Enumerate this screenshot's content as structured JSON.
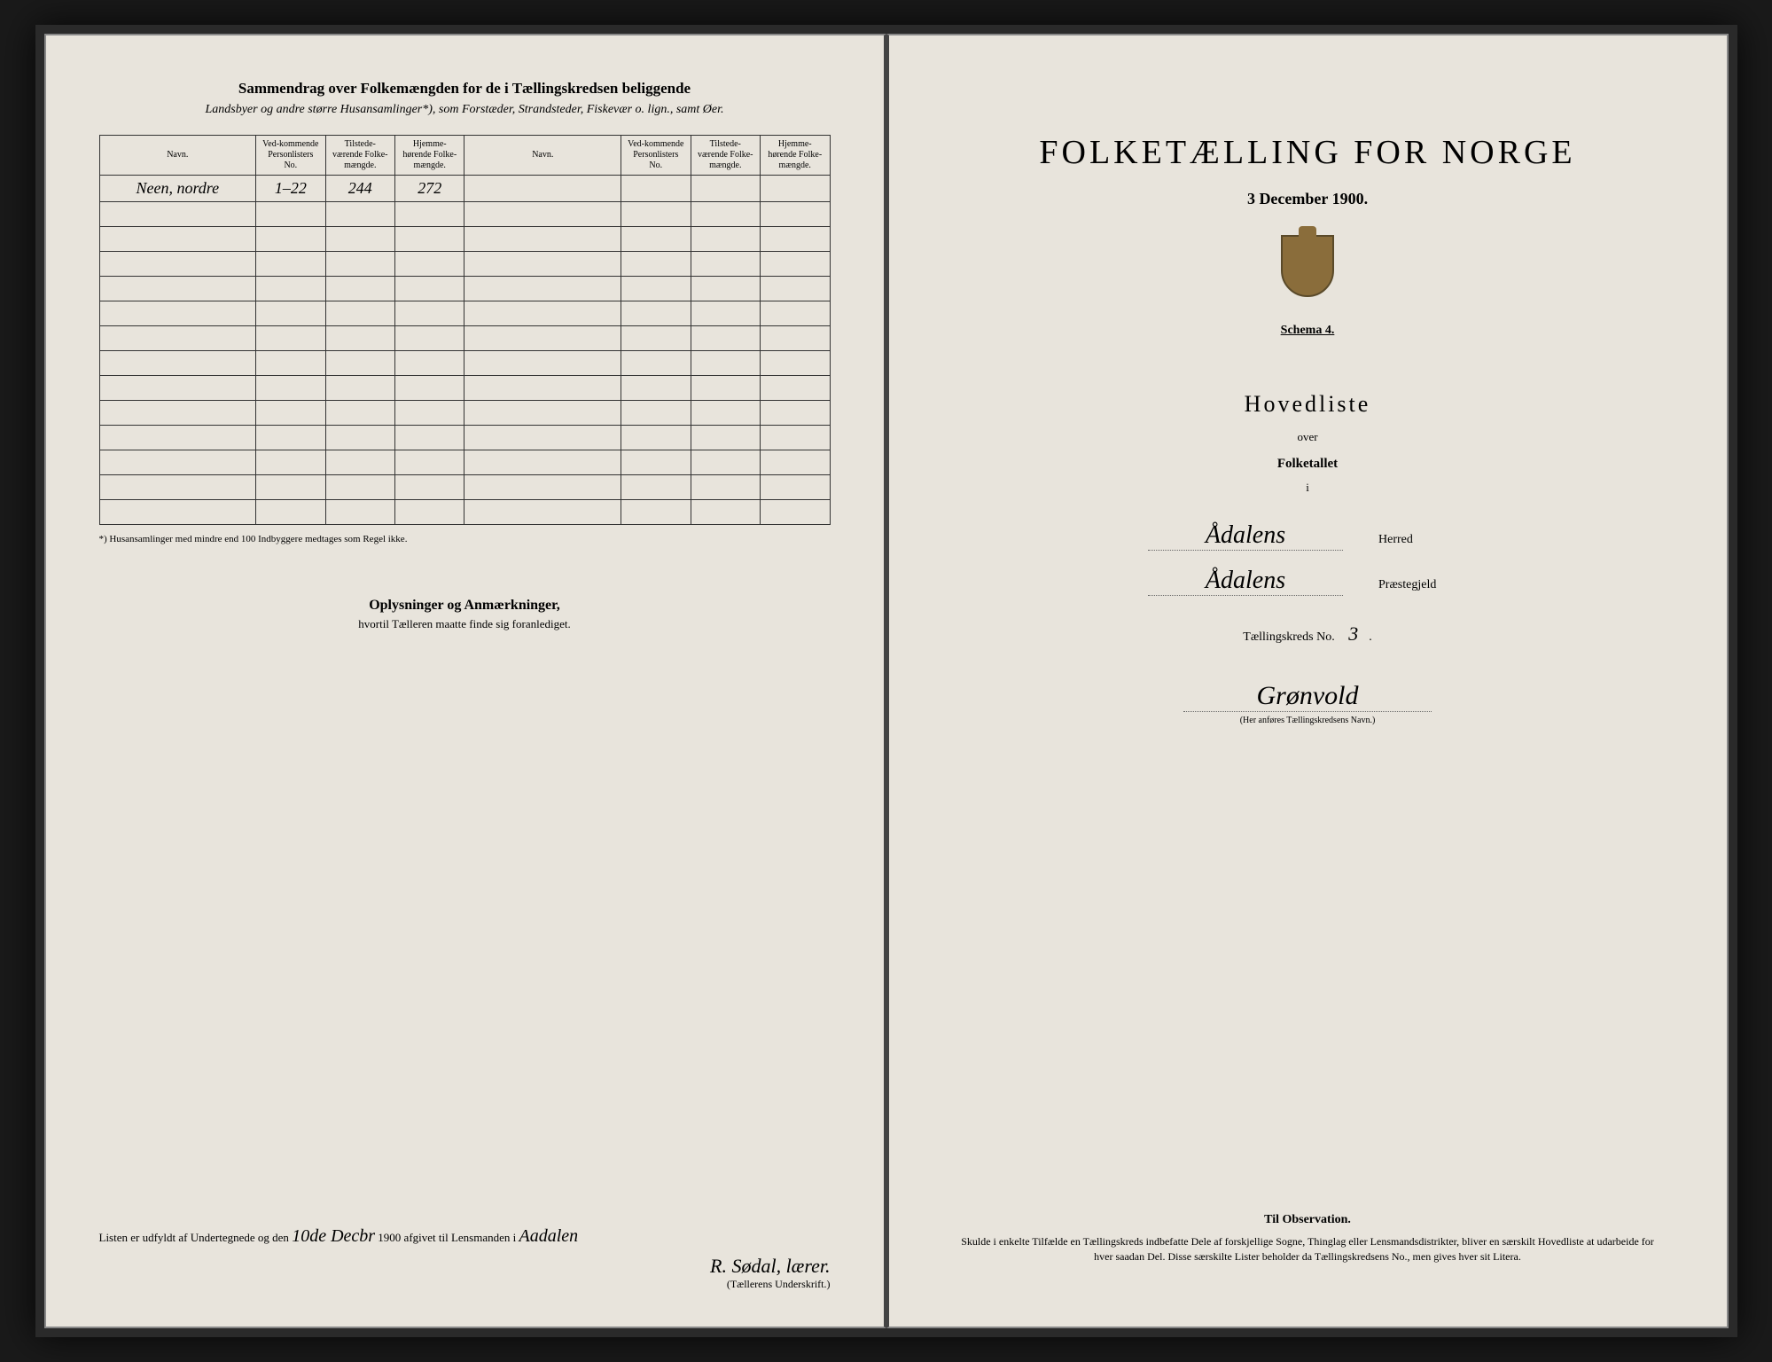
{
  "left": {
    "summary_title": "Sammendrag over Folkemængden for de i Tællingskredsen beliggende",
    "summary_sub": "Landsbyer og andre større Husansamlinger*), som Forstæder, Strandsteder, Fiskevær o. lign., samt Øer.",
    "columns": {
      "navn": "Navn.",
      "vedk": "Ved-kommende Personlisters No.",
      "tilst": "Tilstede-værende Folke-mængde.",
      "hjem": "Hjemme-hørende Folke-mængde."
    },
    "row": {
      "navn": "Neen, nordre",
      "vedk": "1–22",
      "tilst": "244",
      "hjem": "272"
    },
    "footnote": "*) Husansamlinger med mindre end 100 Indbyggere medtages som Regel ikke.",
    "oplysninger_title": "Oplysninger og Anmærkninger,",
    "oplysninger_sub": "hvortil Tælleren maatte finde sig foranlediget.",
    "bottom_prefix": "Listen er udfyldt af Undertegnede og den",
    "bottom_date": "10de Decbr",
    "bottom_year": "1900",
    "bottom_mid": "afgivet til Lensmanden i",
    "bottom_place": "Aadalen",
    "signature": "R. Sødal, lærer.",
    "signature_label": "(Tællerens Underskrift.)"
  },
  "right": {
    "main_title": "FOLKETÆLLING FOR NORGE",
    "date": "3 December 1900.",
    "schema": "Schema 4.",
    "hovedliste": "Hovedliste",
    "over": "over",
    "folketallet": "Folketallet",
    "i": "i",
    "herred_val": "Ådalens",
    "herred_label": "Herred",
    "prest_val": "Ådalens",
    "prest_label": "Præstegjeld",
    "kreds_label": "Tællingskreds No.",
    "kreds_no": "3",
    "district": "Grønvold",
    "district_note": "(Her anføres Tællingskredsens Navn.)",
    "obs_title": "Til Observation.",
    "obs_body": "Skulde i enkelte Tilfælde en Tællingskreds indbefatte Dele af forskjellige Sogne, Thinglag eller Lensmandsdistrikter, bliver en særskilt Hovedliste at udarbeide for hver saadan Del. Disse særskilte Lister beholder da Tællingskredsens No., men gives hver sit Litera."
  },
  "colors": {
    "paper": "#e8e4dc",
    "ink": "#222222",
    "border": "#333333"
  }
}
